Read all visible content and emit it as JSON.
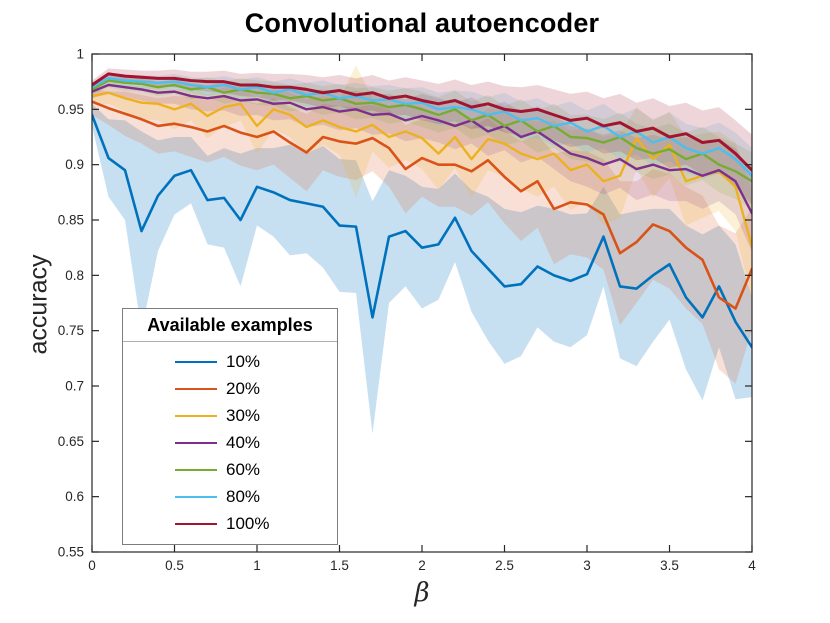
{
  "figure_title": "Convolutional autoencoder",
  "chart_data": {
    "type": "line",
    "title": "Convolutional autoencoder",
    "xlabel": "β",
    "ylabel": "accuracy",
    "xlim": [
      0,
      4
    ],
    "ylim": [
      0.55,
      1.0
    ],
    "grid": false,
    "axis_box": true,
    "legend": {
      "title": "Available examples",
      "position": "lower-left"
    },
    "xticks": [
      "0",
      "0.5",
      "1",
      "1.5",
      "2",
      "2.5",
      "3",
      "3.5",
      "4"
    ],
    "yticks": [
      "0.55",
      "0.6",
      "0.65",
      "0.7",
      "0.75",
      "0.8",
      "0.85",
      "0.9",
      "0.95",
      "1"
    ],
    "x": [
      0.0,
      0.1,
      0.2,
      0.3,
      0.4,
      0.5,
      0.6,
      0.7,
      0.8,
      0.9,
      1.0,
      1.1,
      1.2,
      1.3,
      1.4,
      1.5,
      1.6,
      1.7,
      1.8,
      1.9,
      2.0,
      2.1,
      2.2,
      2.3,
      2.4,
      2.5,
      2.6,
      2.7,
      2.8,
      2.9,
      3.0,
      3.1,
      3.2,
      3.3,
      3.4,
      3.5,
      3.6,
      3.7,
      3.8,
      3.9,
      4.0
    ],
    "series": [
      {
        "name": "10%",
        "color": "#0072BD",
        "width": 2.6,
        "band_opacity": 0.22,
        "values": [
          0.945,
          0.906,
          0.895,
          0.84,
          0.872,
          0.89,
          0.895,
          0.868,
          0.87,
          0.85,
          0.88,
          0.875,
          0.868,
          0.865,
          0.862,
          0.845,
          0.844,
          0.762,
          0.835,
          0.84,
          0.825,
          0.828,
          0.852,
          0.822,
          0.806,
          0.79,
          0.792,
          0.808,
          0.8,
          0.795,
          0.801,
          0.835,
          0.79,
          0.788,
          0.8,
          0.81,
          0.78,
          0.762,
          0.79,
          0.758,
          0.735
        ],
        "band": [
          0.01,
          0.035,
          0.045,
          0.09,
          0.05,
          0.035,
          0.03,
          0.04,
          0.045,
          0.06,
          0.035,
          0.04,
          0.05,
          0.045,
          0.055,
          0.06,
          0.06,
          0.105,
          0.06,
          0.05,
          0.055,
          0.05,
          0.04,
          0.055,
          0.065,
          0.07,
          0.065,
          0.055,
          0.06,
          0.06,
          0.055,
          0.045,
          0.065,
          0.07,
          0.06,
          0.05,
          0.065,
          0.075,
          0.055,
          0.07,
          0.045
        ]
      },
      {
        "name": "20%",
        "color": "#D95319",
        "width": 2.6,
        "band_opacity": 0.18,
        "values": [
          0.957,
          0.951,
          0.946,
          0.941,
          0.935,
          0.937,
          0.934,
          0.93,
          0.935,
          0.929,
          0.925,
          0.93,
          0.92,
          0.911,
          0.925,
          0.921,
          0.919,
          0.924,
          0.915,
          0.896,
          0.906,
          0.9,
          0.9,
          0.894,
          0.904,
          0.889,
          0.876,
          0.885,
          0.86,
          0.866,
          0.864,
          0.855,
          0.82,
          0.83,
          0.846,
          0.84,
          0.825,
          0.814,
          0.78,
          0.77,
          0.806
        ],
        "band": [
          0.012,
          0.015,
          0.02,
          0.022,
          0.025,
          0.025,
          0.027,
          0.028,
          0.028,
          0.03,
          0.03,
          0.03,
          0.032,
          0.035,
          0.03,
          0.032,
          0.033,
          0.03,
          0.035,
          0.04,
          0.035,
          0.038,
          0.038,
          0.04,
          0.038,
          0.042,
          0.045,
          0.042,
          0.05,
          0.047,
          0.048,
          0.05,
          0.065,
          0.055,
          0.05,
          0.052,
          0.055,
          0.058,
          0.065,
          0.068,
          0.055
        ]
      },
      {
        "name": "30%",
        "color": "#EDB120",
        "width": 2.4,
        "band_opacity": 0.18,
        "values": [
          0.962,
          0.965,
          0.96,
          0.956,
          0.955,
          0.95,
          0.955,
          0.944,
          0.952,
          0.955,
          0.935,
          0.95,
          0.945,
          0.934,
          0.94,
          0.934,
          0.93,
          0.936,
          0.925,
          0.93,
          0.924,
          0.91,
          0.925,
          0.905,
          0.923,
          0.919,
          0.91,
          0.905,
          0.91,
          0.895,
          0.9,
          0.885,
          0.89,
          0.924,
          0.905,
          0.918,
          0.885,
          0.89,
          0.894,
          0.88,
          0.826
        ],
        "band": [
          0.008,
          0.01,
          0.012,
          0.015,
          0.015,
          0.018,
          0.015,
          0.02,
          0.018,
          0.015,
          0.025,
          0.018,
          0.02,
          0.025,
          0.022,
          0.025,
          0.06,
          0.024,
          0.028,
          0.026,
          0.028,
          0.033,
          0.028,
          0.035,
          0.028,
          0.03,
          0.032,
          0.034,
          0.03,
          0.036,
          0.033,
          0.04,
          0.038,
          0.028,
          0.035,
          0.03,
          0.04,
          0.038,
          0.036,
          0.04,
          0.05
        ]
      },
      {
        "name": "40%",
        "color": "#7E2F8E",
        "width": 2.4,
        "band_opacity": 0.16,
        "values": [
          0.966,
          0.972,
          0.97,
          0.968,
          0.965,
          0.966,
          0.962,
          0.96,
          0.962,
          0.958,
          0.959,
          0.955,
          0.956,
          0.95,
          0.952,
          0.948,
          0.95,
          0.945,
          0.946,
          0.94,
          0.944,
          0.94,
          0.935,
          0.94,
          0.93,
          0.935,
          0.925,
          0.93,
          0.92,
          0.91,
          0.906,
          0.9,
          0.905,
          0.896,
          0.9,
          0.895,
          0.896,
          0.89,
          0.895,
          0.885,
          0.856
        ],
        "band": [
          0.006,
          0.008,
          0.009,
          0.01,
          0.01,
          0.011,
          0.012,
          0.012,
          0.013,
          0.014,
          0.014,
          0.015,
          0.015,
          0.016,
          0.016,
          0.017,
          0.017,
          0.018,
          0.018,
          0.019,
          0.02,
          0.02,
          0.021,
          0.021,
          0.022,
          0.022,
          0.023,
          0.023,
          0.024,
          0.025,
          0.026,
          0.027,
          0.026,
          0.028,
          0.027,
          0.028,
          0.029,
          0.03,
          0.028,
          0.03,
          0.035
        ]
      },
      {
        "name": "60%",
        "color": "#77AC30",
        "width": 2.4,
        "band_opacity": 0.16,
        "values": [
          0.968,
          0.976,
          0.974,
          0.973,
          0.97,
          0.972,
          0.968,
          0.97,
          0.965,
          0.968,
          0.965,
          0.964,
          0.96,
          0.962,
          0.958,
          0.96,
          0.955,
          0.956,
          0.952,
          0.954,
          0.95,
          0.945,
          0.95,
          0.94,
          0.945,
          0.935,
          0.94,
          0.93,
          0.935,
          0.925,
          0.924,
          0.92,
          0.925,
          0.915,
          0.91,
          0.914,
          0.905,
          0.91,
          0.9,
          0.894,
          0.885
        ],
        "band": [
          0.005,
          0.006,
          0.007,
          0.007,
          0.008,
          0.008,
          0.009,
          0.009,
          0.01,
          0.01,
          0.011,
          0.011,
          0.012,
          0.012,
          0.013,
          0.013,
          0.014,
          0.014,
          0.015,
          0.015,
          0.016,
          0.016,
          0.017,
          0.017,
          0.018,
          0.018,
          0.019,
          0.019,
          0.02,
          0.02,
          0.021,
          0.021,
          0.022,
          0.022,
          0.023,
          0.023,
          0.024,
          0.024,
          0.025,
          0.025,
          0.026
        ]
      },
      {
        "name": "80%",
        "color": "#4DBEEE",
        "width": 2.4,
        "band_opacity": 0.18,
        "values": [
          0.97,
          0.978,
          0.976,
          0.975,
          0.974,
          0.975,
          0.972,
          0.97,
          0.972,
          0.968,
          0.97,
          0.965,
          0.968,
          0.963,
          0.965,
          0.96,
          0.962,
          0.958,
          0.959,
          0.955,
          0.956,
          0.95,
          0.952,
          0.95,
          0.945,
          0.948,
          0.94,
          0.942,
          0.935,
          0.938,
          0.93,
          0.935,
          0.925,
          0.93,
          0.92,
          0.925,
          0.915,
          0.91,
          0.915,
          0.905,
          0.89
        ],
        "band": [
          0.004,
          0.005,
          0.005,
          0.006,
          0.006,
          0.007,
          0.007,
          0.008,
          0.008,
          0.009,
          0.009,
          0.01,
          0.01,
          0.011,
          0.011,
          0.012,
          0.012,
          0.013,
          0.013,
          0.014,
          0.014,
          0.015,
          0.015,
          0.016,
          0.016,
          0.017,
          0.017,
          0.018,
          0.018,
          0.019,
          0.019,
          0.02,
          0.02,
          0.021,
          0.021,
          0.022,
          0.022,
          0.023,
          0.023,
          0.024,
          0.025
        ]
      },
      {
        "name": "100%",
        "color": "#A2142F",
        "width": 3.0,
        "band_opacity": 0.18,
        "values": [
          0.972,
          0.982,
          0.98,
          0.979,
          0.978,
          0.978,
          0.976,
          0.975,
          0.975,
          0.972,
          0.972,
          0.97,
          0.97,
          0.968,
          0.965,
          0.967,
          0.963,
          0.965,
          0.96,
          0.962,
          0.958,
          0.955,
          0.958,
          0.952,
          0.955,
          0.95,
          0.948,
          0.95,
          0.945,
          0.94,
          0.942,
          0.935,
          0.938,
          0.93,
          0.933,
          0.925,
          0.928,
          0.92,
          0.922,
          0.91,
          0.895
        ],
        "band": [
          0.004,
          0.005,
          0.006,
          0.006,
          0.007,
          0.008,
          0.008,
          0.009,
          0.01,
          0.01,
          0.011,
          0.012,
          0.012,
          0.013,
          0.014,
          0.014,
          0.015,
          0.016,
          0.016,
          0.017,
          0.018,
          0.018,
          0.019,
          0.02,
          0.02,
          0.021,
          0.022,
          0.022,
          0.023,
          0.024,
          0.024,
          0.025,
          0.026,
          0.026,
          0.027,
          0.028,
          0.028,
          0.029,
          0.03,
          0.03,
          0.032
        ]
      }
    ]
  }
}
